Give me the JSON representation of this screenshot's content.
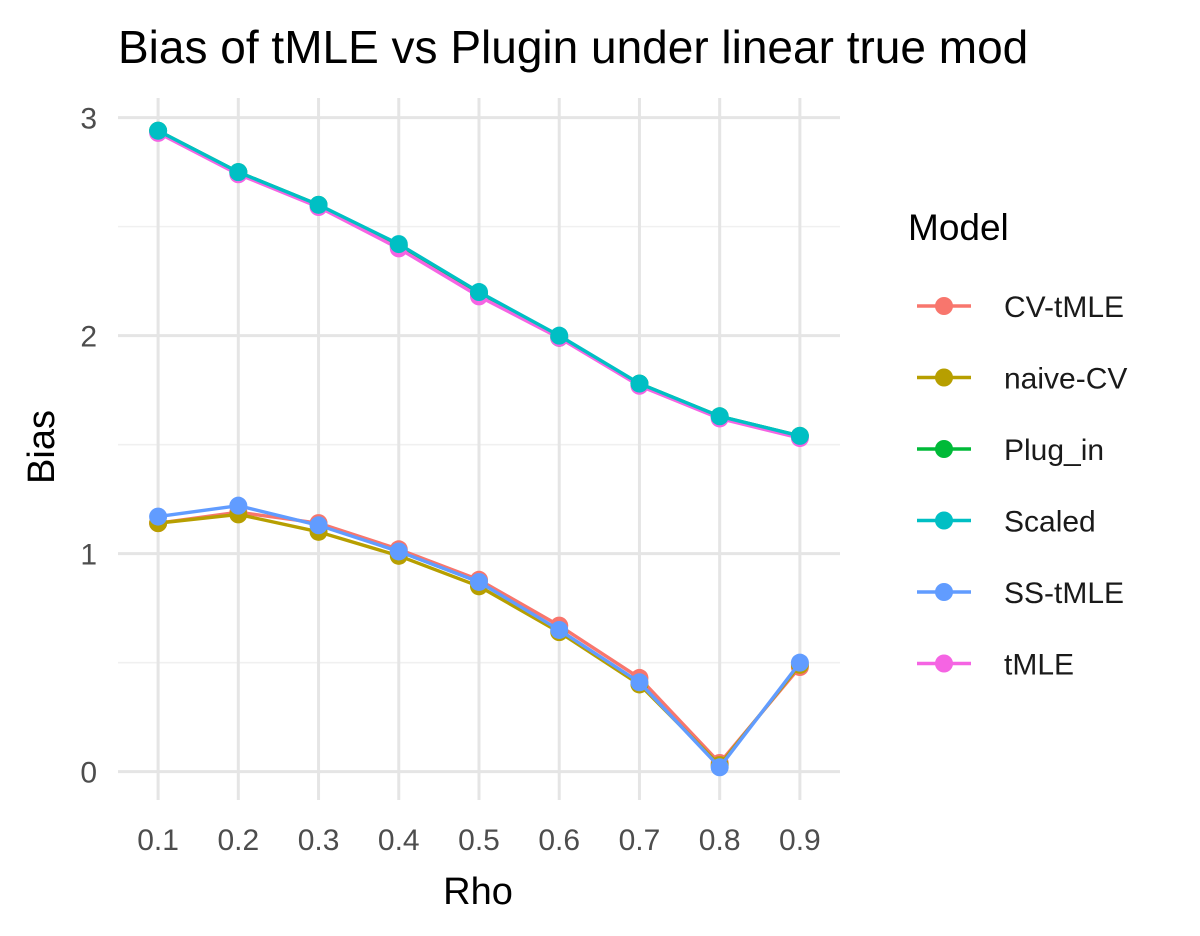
{
  "chart_data": {
    "type": "line",
    "title": "Bias of tMLE vs Plugin under linear true mod",
    "xlabel": "Rho",
    "ylabel": "Bias",
    "x": [
      0.1,
      0.2,
      0.3,
      0.4,
      0.5,
      0.6,
      0.7,
      0.8,
      0.9
    ],
    "x_tick_labels": [
      "0.1",
      "0.2",
      "0.3",
      "0.4",
      "0.5",
      "0.6",
      "0.7",
      "0.8",
      "0.9"
    ],
    "y_ticks": [
      0,
      1,
      2,
      3
    ],
    "y_tick_labels": [
      "0",
      "1",
      "2",
      "3"
    ],
    "ylim": [
      -0.13,
      3.09
    ],
    "grid": true,
    "legend": {
      "title": "Model",
      "position": "right"
    },
    "series": [
      {
        "name": "CV-tMLE",
        "color": "#F8766D",
        "values": [
          1.14,
          1.19,
          1.14,
          1.02,
          0.88,
          0.67,
          0.43,
          0.04,
          0.48
        ]
      },
      {
        "name": "naive-CV",
        "color": "#B79F00",
        "values": [
          1.14,
          1.18,
          1.1,
          0.99,
          0.85,
          0.64,
          0.4,
          0.03,
          0.49
        ]
      },
      {
        "name": "Plug_in",
        "color": "#00BA38",
        "values": [
          2.94,
          2.75,
          2.6,
          2.41,
          2.19,
          1.99,
          1.78,
          1.63,
          1.54
        ]
      },
      {
        "name": "Scaled",
        "color": "#00BFC4",
        "values": [
          2.94,
          2.75,
          2.6,
          2.42,
          2.2,
          2.0,
          1.78,
          1.63,
          1.54
        ]
      },
      {
        "name": "SS-tMLE",
        "color": "#619CFF",
        "values": [
          1.17,
          1.22,
          1.13,
          1.01,
          0.87,
          0.65,
          0.41,
          0.02,
          0.5
        ]
      },
      {
        "name": "tMLE",
        "color": "#F564E3",
        "values": [
          2.93,
          2.74,
          2.59,
          2.4,
          2.18,
          1.99,
          1.77,
          1.62,
          1.53
        ]
      }
    ],
    "draw_order": [
      "Plug_in",
      "tMLE",
      "Scaled",
      "CV-tMLE",
      "naive-CV",
      "SS-tMLE"
    ]
  }
}
